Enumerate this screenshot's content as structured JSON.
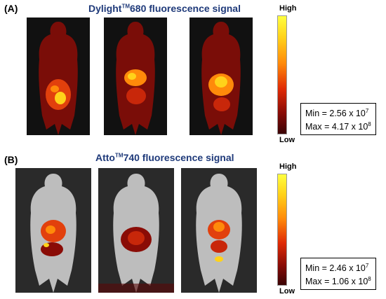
{
  "panels": [
    {
      "label": "(A)",
      "title_main": "Dylight",
      "title_sup": "TM",
      "title_rest": "680 fluorescence signal",
      "scale_high": "High",
      "scale_low": "Low",
      "min_text": "Min = 2.56 x 10",
      "min_exp": "7",
      "max_text": "Max = 4.17 x 10",
      "max_exp": "8"
    },
    {
      "label": "(B)",
      "title_main": "Atto",
      "title_sup": "TM",
      "title_rest": "740 fluorescence signal",
      "scale_high": "High",
      "scale_low": "Low",
      "min_text": "Min = 2.46 x 10",
      "min_exp": "7",
      "max_text": "Max = 1.06 x 10",
      "max_exp": "8"
    }
  ],
  "colors": {
    "title": "#1f3a7a",
    "signal_high": "#ffff40",
    "signal_low": "#3a0305"
  }
}
